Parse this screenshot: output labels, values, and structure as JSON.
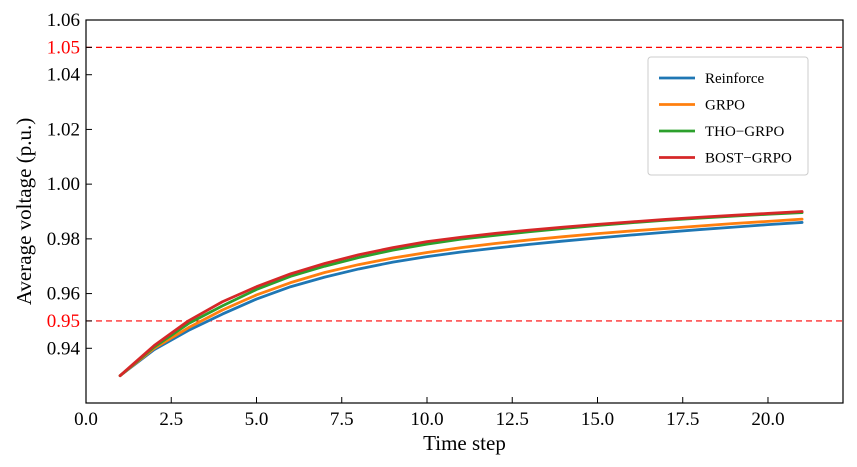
{
  "chart_data": {
    "type": "line",
    "xlabel": "Time step",
    "ylabel": "Average voltage (p.u.)",
    "xlim": [
      0,
      22.2
    ],
    "ylim": [
      0.92,
      1.06
    ],
    "x_ticks": [
      0.0,
      2.5,
      5.0,
      7.5,
      10.0,
      12.5,
      15.0,
      17.5,
      20.0
    ],
    "x_tick_labels": [
      "0.0",
      "2.5",
      "5.0",
      "7.5",
      "10.0",
      "12.5",
      "15.0",
      "17.5",
      "20.0"
    ],
    "y_ticks": [
      0.94,
      0.96,
      0.98,
      1.0,
      1.02,
      1.04,
      1.06
    ],
    "y_tick_labels": [
      "0.94",
      "0.96",
      "0.98",
      "1.00",
      "1.02",
      "1.04",
      "1.06"
    ],
    "limits": [
      {
        "value": 1.05,
        "label": "1.05",
        "color": "#ff0000",
        "style": "dashed"
      },
      {
        "value": 0.95,
        "label": "0.95",
        "color": "#ff0000",
        "style": "dashed"
      }
    ],
    "grid": false,
    "legend_position": "top-right",
    "x": [
      1,
      2,
      3,
      4,
      5,
      6,
      7,
      8,
      9,
      10,
      11,
      12,
      13,
      14,
      15,
      16,
      17,
      18,
      19,
      20,
      21
    ],
    "series": [
      {
        "name": "Reinforce",
        "color": "#1f77b4",
        "values": [
          0.93,
          0.9395,
          0.9465,
          0.9525,
          0.958,
          0.9625,
          0.966,
          0.969,
          0.9715,
          0.9735,
          0.9752,
          0.9766,
          0.978,
          0.9792,
          0.9803,
          0.9814,
          0.9824,
          0.9834,
          0.9843,
          0.9852,
          0.986
        ]
      },
      {
        "name": "GRPO",
        "color": "#ff7f0e",
        "values": [
          0.93,
          0.94,
          0.9475,
          0.954,
          0.9595,
          0.964,
          0.9677,
          0.9706,
          0.973,
          0.975,
          0.9768,
          0.9783,
          0.9796,
          0.9808,
          0.9819,
          0.9829,
          0.9838,
          0.9847,
          0.9856,
          0.9864,
          0.9872
        ]
      },
      {
        "name": "THO−GRPO",
        "color": "#2ca02c",
        "values": [
          0.93,
          0.9405,
          0.949,
          0.9555,
          0.9615,
          0.9663,
          0.97,
          0.9732,
          0.9759,
          0.9781,
          0.9799,
          0.9813,
          0.9826,
          0.9838,
          0.9849,
          0.9859,
          0.9868,
          0.9876,
          0.9883,
          0.989,
          0.9896
        ]
      },
      {
        "name": "BOST−GRPO",
        "color": "#d62728",
        "values": [
          0.93,
          0.941,
          0.95,
          0.957,
          0.9625,
          0.9672,
          0.971,
          0.9742,
          0.9768,
          0.979,
          0.9806,
          0.982,
          0.9832,
          0.9843,
          0.9853,
          0.9862,
          0.9871,
          0.9879,
          0.9886,
          0.9893,
          0.99
        ]
      }
    ]
  }
}
